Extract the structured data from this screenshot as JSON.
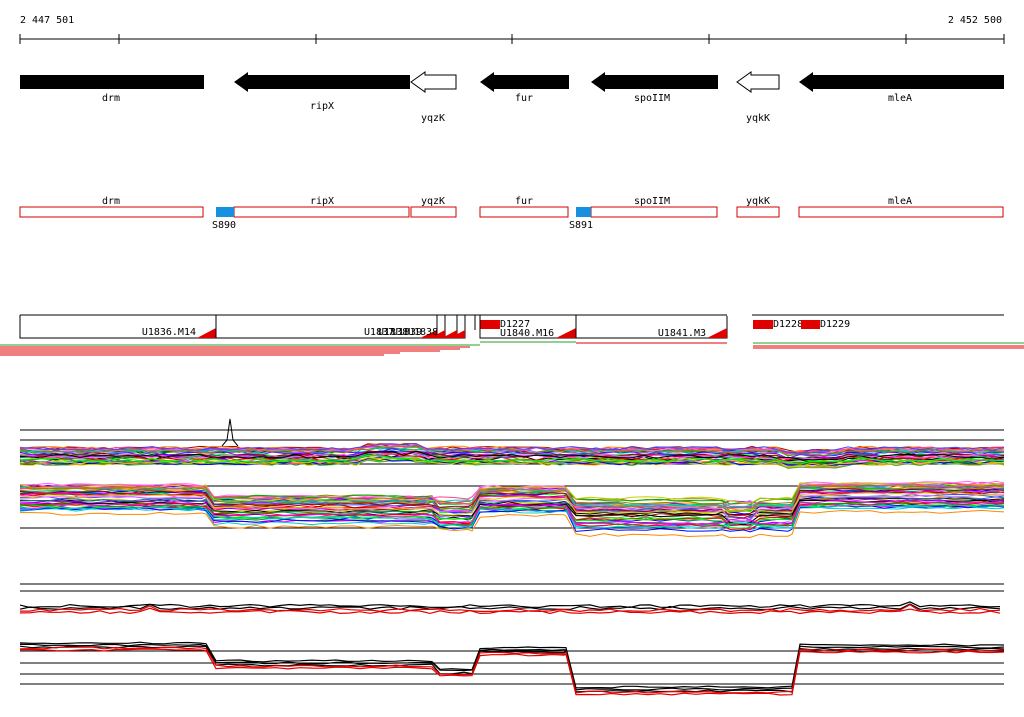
{
  "coordinates": {
    "start": "2 447 501",
    "end": "2 452 500"
  },
  "colors": {
    "gene_fill": "#000000",
    "gene_hollow": "#ffffff",
    "cds_box_border": "#d00000",
    "start_site": "#1890e0",
    "segment_marker": "#e00000",
    "expr_red": "#e00000",
    "expr_green": "#20a020"
  },
  "genes": [
    {
      "name": "drm",
      "filled": true,
      "label_below": false
    },
    {
      "name": "ripX",
      "filled": true,
      "label_below": false
    },
    {
      "name": "yqzK",
      "filled": false,
      "label_below": true
    },
    {
      "name": "fur",
      "filled": true,
      "label_below": false
    },
    {
      "name": "spoIIM",
      "filled": true,
      "label_below": false
    },
    {
      "name": "yqkK",
      "filled": false,
      "label_below": true
    },
    {
      "name": "mleA",
      "filled": true,
      "label_below": false
    }
  ],
  "start_sites": [
    "S890",
    "S891"
  ],
  "segments": [
    "U1836.M14",
    "U1837",
    "U1838",
    "U1839",
    "U1838",
    "U1840.M16",
    "U1841.M3"
  ],
  "down_markers": [
    "D1227",
    "D1228",
    "D1229"
  ],
  "tracks": {
    "expression_multi": "condition-profile-lines",
    "expression_summary": "summary-profile-lines"
  }
}
